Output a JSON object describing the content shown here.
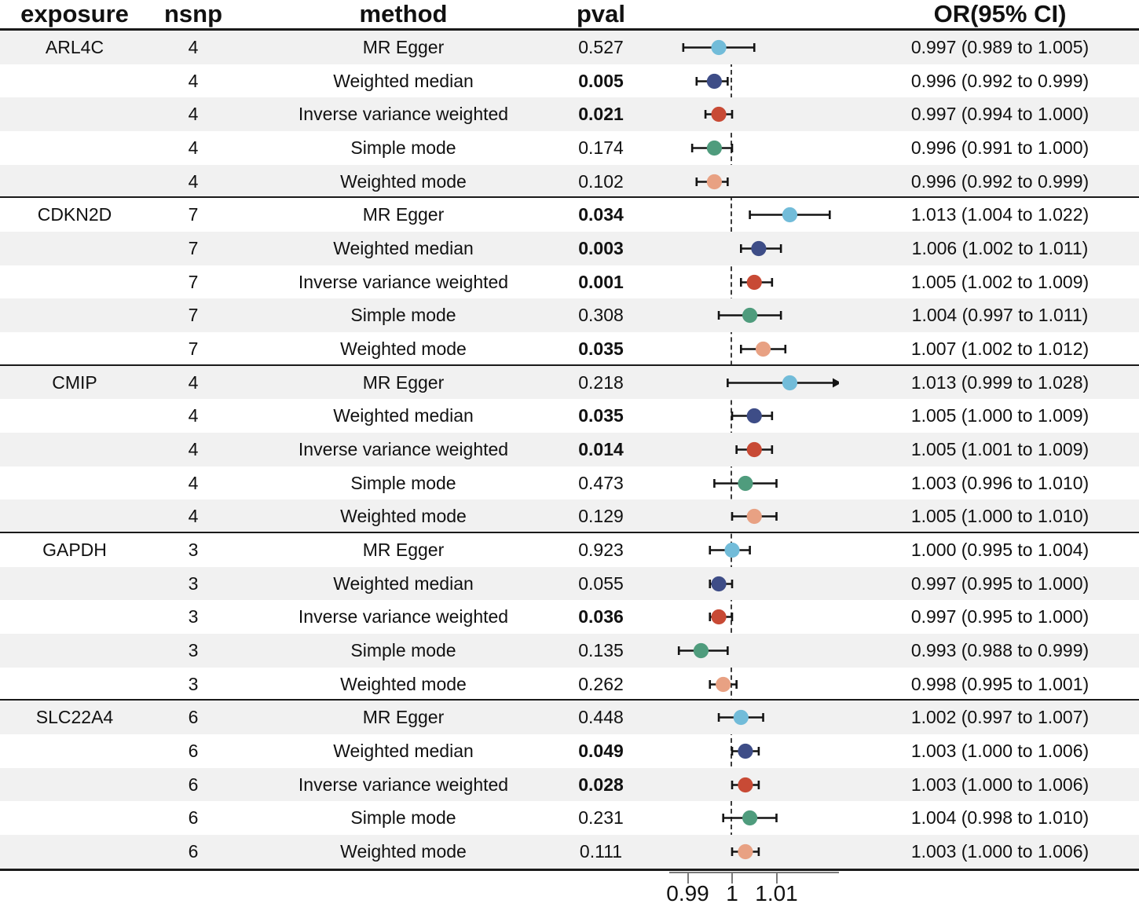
{
  "header": {
    "exposure": "exposure",
    "nsnp": "nsnp",
    "method": "method",
    "pval": "pval",
    "or_ci": "OR(95% CI)"
  },
  "axis": {
    "tick_labels": [
      "0.99",
      "1",
      "1.01"
    ],
    "tick_values": [
      0.99,
      1,
      1.01
    ],
    "reference_line": 1
  },
  "style": {
    "stripe_color": "#f1f1f1",
    "line_color": "#1a1a1a",
    "method_colors": {
      "MR Egger": "#72bcd9",
      "Weighted median": "#3e4d87",
      "Inverse variance weighted": "#c84a35",
      "Simple mode": "#4f9c7d",
      "Weighted mode": "#e8a183"
    }
  },
  "chart_data": {
    "type": "scatter",
    "subtype": "forest-plot",
    "title": "",
    "xlabel": "",
    "x_ticks": [
      0.99,
      1,
      1.01
    ],
    "x_range_shown": [
      0.986,
      1.024
    ],
    "reference_line": 1,
    "legend": "none",
    "groups": [
      {
        "exposure": "ARL4C",
        "nsnp": "4",
        "rows": [
          {
            "method": "MR Egger",
            "pval": "0.527",
            "significant": false,
            "or": 0.997,
            "ci_low": 0.989,
            "ci_high": 1.005,
            "or_ci_text": "0.997 (0.989 to 1.005)"
          },
          {
            "method": "Weighted median",
            "pval": "0.005",
            "significant": true,
            "or": 0.996,
            "ci_low": 0.992,
            "ci_high": 0.999,
            "or_ci_text": "0.996 (0.992 to 0.999)"
          },
          {
            "method": "Inverse variance weighted",
            "pval": "0.021",
            "significant": true,
            "or": 0.997,
            "ci_low": 0.994,
            "ci_high": 1.0,
            "or_ci_text": "0.997 (0.994 to 1.000)"
          },
          {
            "method": "Simple mode",
            "pval": "0.174",
            "significant": false,
            "or": 0.996,
            "ci_low": 0.991,
            "ci_high": 1.0,
            "or_ci_text": "0.996 (0.991 to 1.000)"
          },
          {
            "method": "Weighted mode",
            "pval": "0.102",
            "significant": false,
            "or": 0.996,
            "ci_low": 0.992,
            "ci_high": 0.999,
            "or_ci_text": "0.996 (0.992 to 0.999)"
          }
        ]
      },
      {
        "exposure": "CDKN2D",
        "nsnp": "7",
        "rows": [
          {
            "method": "MR Egger",
            "pval": "0.034",
            "significant": true,
            "or": 1.013,
            "ci_low": 1.004,
            "ci_high": 1.022,
            "or_ci_text": "1.013 (1.004 to 1.022)"
          },
          {
            "method": "Weighted median",
            "pval": "0.003",
            "significant": true,
            "or": 1.006,
            "ci_low": 1.002,
            "ci_high": 1.011,
            "or_ci_text": "1.006 (1.002 to 1.011)"
          },
          {
            "method": "Inverse variance weighted",
            "pval": "0.001",
            "significant": true,
            "or": 1.005,
            "ci_low": 1.002,
            "ci_high": 1.009,
            "or_ci_text": "1.005 (1.002 to 1.009)"
          },
          {
            "method": "Simple mode",
            "pval": "0.308",
            "significant": false,
            "or": 1.004,
            "ci_low": 0.997,
            "ci_high": 1.011,
            "or_ci_text": "1.004 (0.997 to 1.011)"
          },
          {
            "method": "Weighted mode",
            "pval": "0.035",
            "significant": true,
            "or": 1.007,
            "ci_low": 1.002,
            "ci_high": 1.012,
            "or_ci_text": "1.007 (1.002 to 1.012)"
          }
        ]
      },
      {
        "exposure": "CMIP",
        "nsnp": "4",
        "rows": [
          {
            "method": "MR Egger",
            "pval": "0.218",
            "significant": false,
            "or": 1.013,
            "ci_low": 0.999,
            "ci_high": 1.028,
            "or_ci_text": "1.013 (0.999 to 1.028)"
          },
          {
            "method": "Weighted median",
            "pval": "0.035",
            "significant": true,
            "or": 1.005,
            "ci_low": 1.0,
            "ci_high": 1.009,
            "or_ci_text": "1.005 (1.000 to 1.009)"
          },
          {
            "method": "Inverse variance weighted",
            "pval": "0.014",
            "significant": true,
            "or": 1.005,
            "ci_low": 1.001,
            "ci_high": 1.009,
            "or_ci_text": "1.005 (1.001 to 1.009)"
          },
          {
            "method": "Simple mode",
            "pval": "0.473",
            "significant": false,
            "or": 1.003,
            "ci_low": 0.996,
            "ci_high": 1.01,
            "or_ci_text": "1.003 (0.996 to 1.010)"
          },
          {
            "method": "Weighted mode",
            "pval": "0.129",
            "significant": false,
            "or": 1.005,
            "ci_low": 1.0,
            "ci_high": 1.01,
            "or_ci_text": "1.005 (1.000 to 1.010)"
          }
        ]
      },
      {
        "exposure": "GAPDH",
        "nsnp": "3",
        "rows": [
          {
            "method": "MR Egger",
            "pval": "0.923",
            "significant": false,
            "or": 1.0,
            "ci_low": 0.995,
            "ci_high": 1.004,
            "or_ci_text": "1.000 (0.995 to 1.004)"
          },
          {
            "method": "Weighted median",
            "pval": "0.055",
            "significant": false,
            "or": 0.997,
            "ci_low": 0.995,
            "ci_high": 1.0,
            "or_ci_text": "0.997 (0.995 to 1.000)"
          },
          {
            "method": "Inverse variance weighted",
            "pval": "0.036",
            "significant": true,
            "or": 0.997,
            "ci_low": 0.995,
            "ci_high": 1.0,
            "or_ci_text": "0.997 (0.995 to 1.000)"
          },
          {
            "method": "Simple mode",
            "pval": "0.135",
            "significant": false,
            "or": 0.993,
            "ci_low": 0.988,
            "ci_high": 0.999,
            "or_ci_text": "0.993 (0.988 to 0.999)"
          },
          {
            "method": "Weighted mode",
            "pval": "0.262",
            "significant": false,
            "or": 0.998,
            "ci_low": 0.995,
            "ci_high": 1.001,
            "or_ci_text": "0.998 (0.995 to 1.001)"
          }
        ]
      },
      {
        "exposure": "SLC22A4",
        "nsnp": "6",
        "rows": [
          {
            "method": "MR Egger",
            "pval": "0.448",
            "significant": false,
            "or": 1.002,
            "ci_low": 0.997,
            "ci_high": 1.007,
            "or_ci_text": "1.002 (0.997 to 1.007)"
          },
          {
            "method": "Weighted median",
            "pval": "0.049",
            "significant": true,
            "or": 1.003,
            "ci_low": 1.0,
            "ci_high": 1.006,
            "or_ci_text": "1.003 (1.000 to 1.006)"
          },
          {
            "method": "Inverse variance weighted",
            "pval": "0.028",
            "significant": true,
            "or": 1.003,
            "ci_low": 1.0,
            "ci_high": 1.006,
            "or_ci_text": "1.003 (1.000 to 1.006)"
          },
          {
            "method": "Simple mode",
            "pval": "0.231",
            "significant": false,
            "or": 1.004,
            "ci_low": 0.998,
            "ci_high": 1.01,
            "or_ci_text": "1.004 (0.998 to 1.010)"
          },
          {
            "method": "Weighted mode",
            "pval": "0.111",
            "significant": false,
            "or": 1.003,
            "ci_low": 1.0,
            "ci_high": 1.006,
            "or_ci_text": "1.003 (1.000 to 1.006)"
          }
        ]
      }
    ]
  }
}
